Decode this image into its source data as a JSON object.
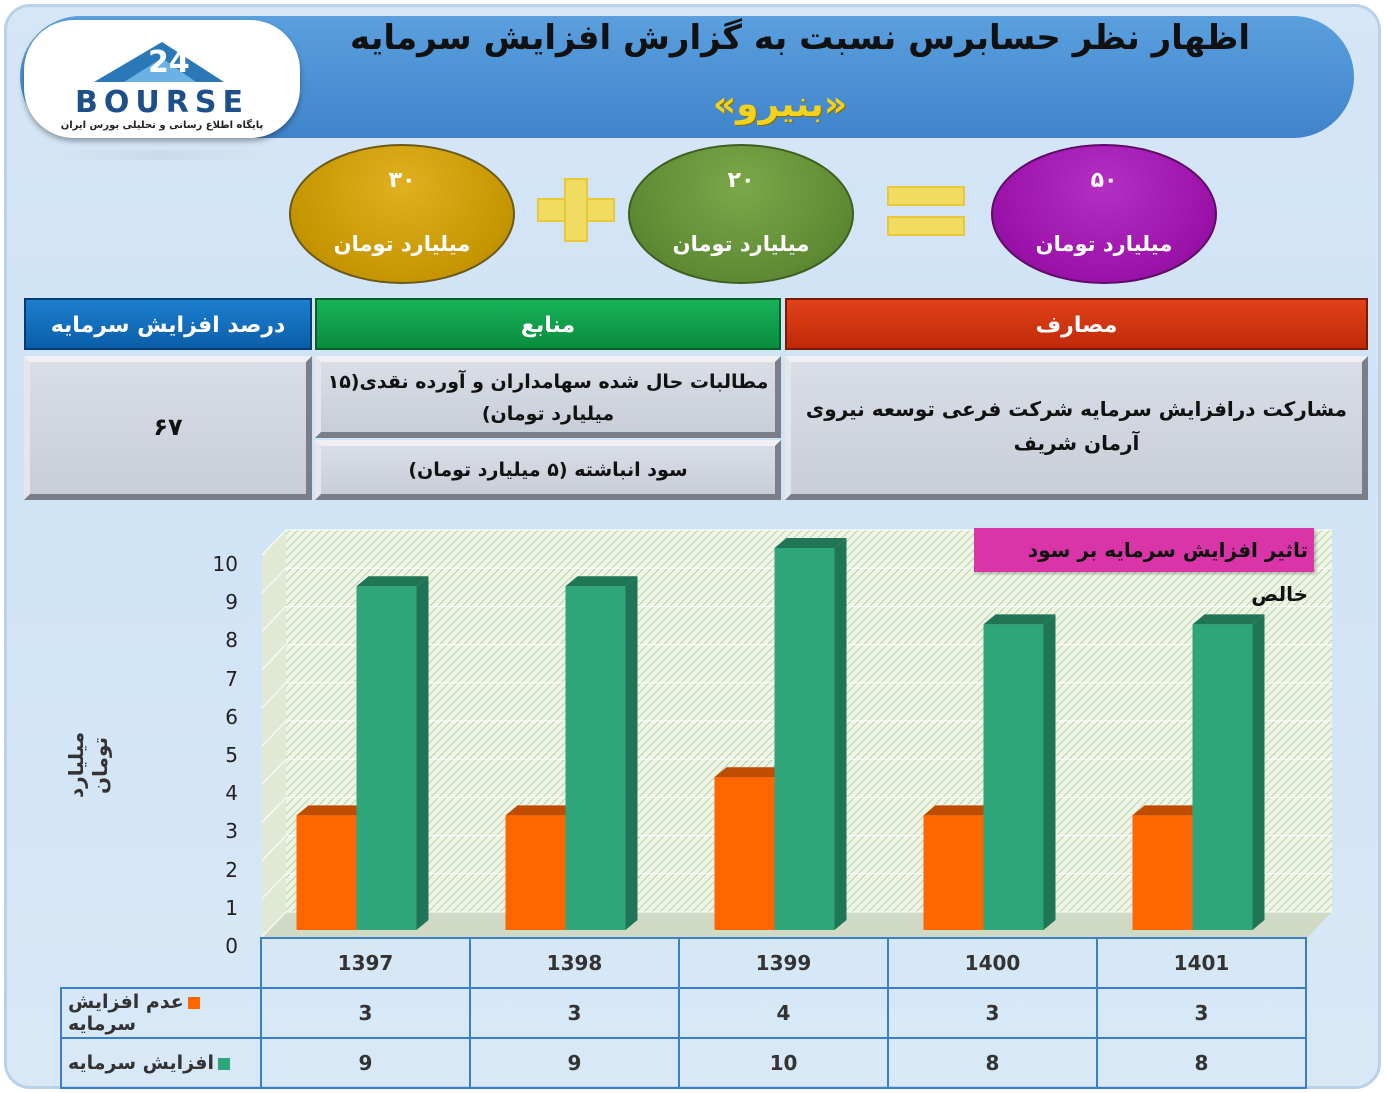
{
  "header": {
    "title": "اظهار نظر حسابرس نسبت به گزارش افزایش سرمایه",
    "subtitle": "«بنیرو»",
    "logo_text": "BOURSE",
    "logo_tagline": "پایگاه اطلاع رسانی و تحلیلی بورس ایران",
    "logo_glyph": "24"
  },
  "equation": {
    "left": {
      "value": "۳۰",
      "unit": "میلیارد تومان",
      "color": "#c59600"
    },
    "middle": {
      "value": "۲۰",
      "unit": "میلیارد تومان",
      "color": "#5f8a34"
    },
    "right": {
      "value": "۵۰",
      "unit": "میلیارد تومان",
      "color": "#9a12a8"
    }
  },
  "table": {
    "headers": {
      "percent": "درصد افزایش سرمایه",
      "sources": "منابع",
      "uses": "مصارف"
    },
    "percent_value": "۶۷",
    "sources": [
      "مطالبات حال شده سهامداران و آورده نقدی(۱۵ میلیارد تومان)",
      "سود انباشته (۵ میلیارد تومان)"
    ],
    "uses": "مشارکت درافزایش سرمایه شرکت فرعی توسعه نیروی آرمان شریف"
  },
  "chart_data": {
    "type": "bar",
    "title": "تاثیر افزایش سرمایه بر سود خالص",
    "ylabel": "میلیارد تومان",
    "ylim": [
      0,
      10
    ],
    "yticks": [
      0,
      1,
      2,
      3,
      4,
      5,
      6,
      7,
      8,
      9,
      10
    ],
    "categories": [
      "1397",
      "1398",
      "1399",
      "1400",
      "1401"
    ],
    "series": [
      {
        "name": "عدم افزایش سرمایه",
        "values": [
          3,
          3,
          4,
          3,
          3
        ],
        "color": "#ff6600"
      },
      {
        "name": "افزایش سرمایه",
        "values": [
          9,
          9,
          10,
          8,
          8
        ],
        "color": "#2fa67a"
      }
    ]
  }
}
